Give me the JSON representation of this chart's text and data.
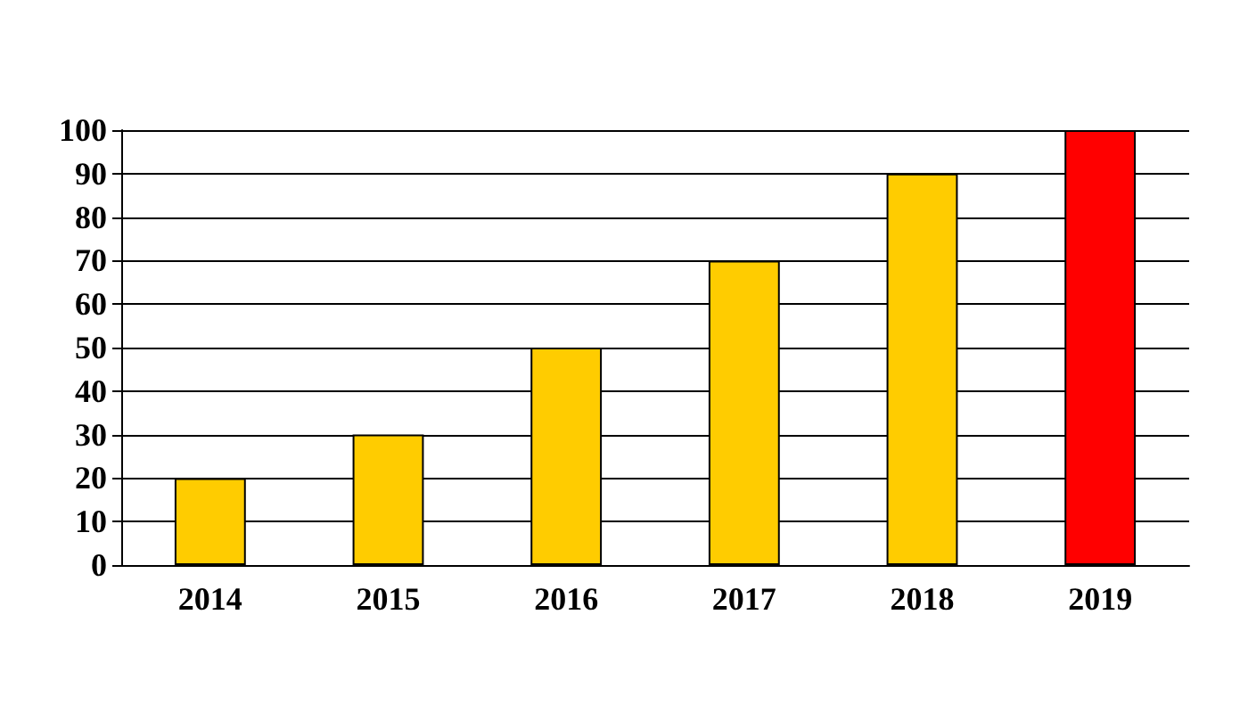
{
  "chart_data": {
    "type": "bar",
    "categories": [
      "2014",
      "2015",
      "2016",
      "2017",
      "2018",
      "2019"
    ],
    "values": [
      20,
      30,
      50,
      70,
      90,
      100
    ],
    "colors": [
      "#ffcc00",
      "#ffcc00",
      "#ffcc00",
      "#ffcc00",
      "#ffcc00",
      "#ff0000"
    ],
    "ylim": [
      0,
      100
    ],
    "yticks": [
      0,
      10,
      20,
      30,
      40,
      50,
      60,
      70,
      80,
      90,
      100
    ],
    "grid": "y"
  }
}
